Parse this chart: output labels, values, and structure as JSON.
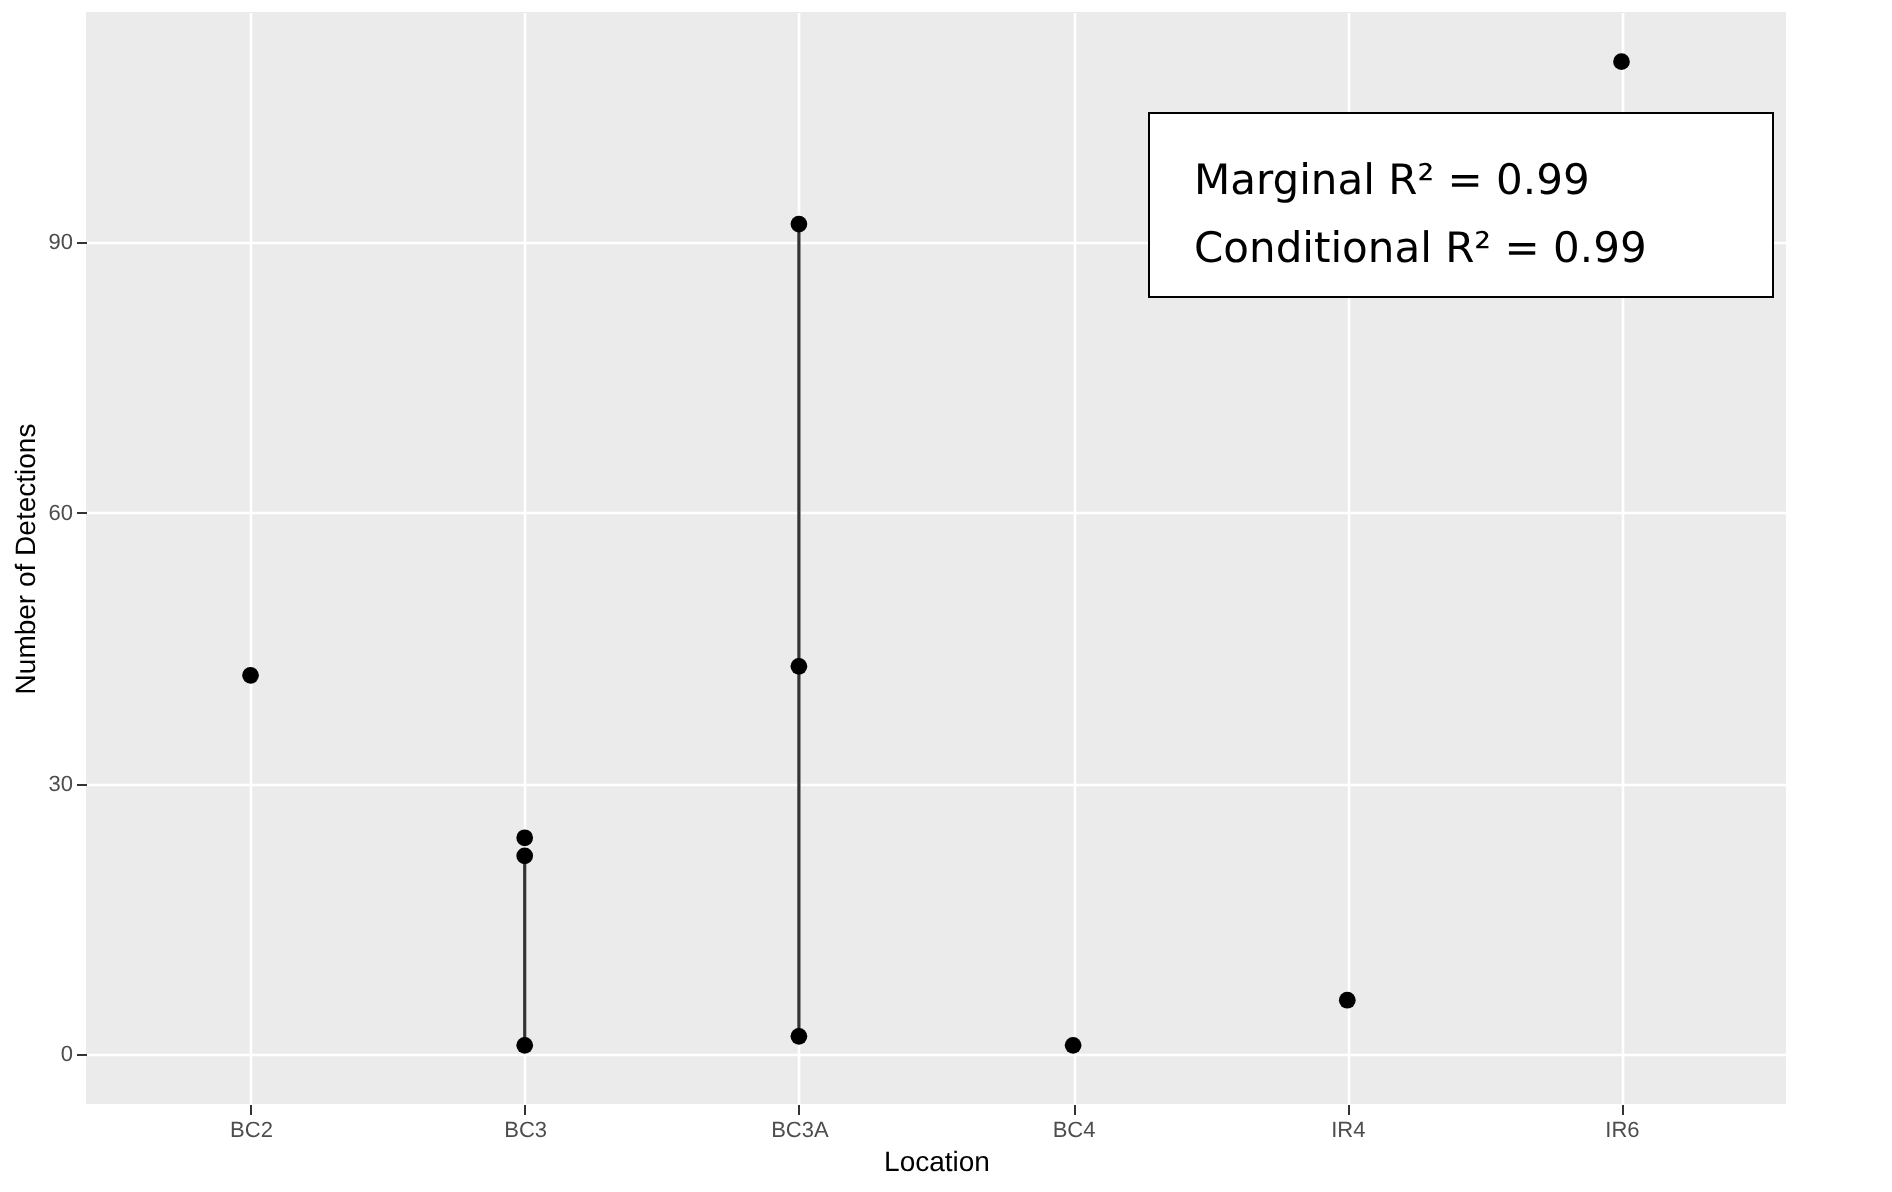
{
  "chart_data": {
    "type": "scatter",
    "xlabel": "Location",
    "ylabel": "Number of Detections",
    "categories": [
      "BC2",
      "BC3",
      "BC3A",
      "BC4",
      "IR4",
      "IR6"
    ],
    "series": [
      {
        "type": "line",
        "color": "#333333",
        "marker": "none",
        "x": [
          "BC3",
          "BC3"
        ],
        "values": [
          1,
          22
        ]
      },
      {
        "type": "line",
        "color": "#333333",
        "marker": "none",
        "x": [
          "BC3A",
          "BC3A"
        ],
        "values": [
          2,
          92
        ]
      },
      {
        "color": "#000000",
        "marker": "circle",
        "x": [
          "BC2",
          "BC3",
          "BC3",
          "BC3",
          "BC3A",
          "BC3A",
          "BC3A",
          "BC4",
          "IR4",
          "IR6"
        ],
        "values": [
          42,
          24,
          22,
          1,
          92,
          43,
          2,
          1,
          6,
          110
        ]
      }
    ],
    "ylim": [
      -5.5,
      115.5
    ],
    "yticks": [
      0,
      30,
      60,
      90
    ],
    "grid": true,
    "line_style": "solid",
    "annotations": [
      "Marginal R² = 0.99",
      "Conditional R² = 0.99"
    ]
  }
}
